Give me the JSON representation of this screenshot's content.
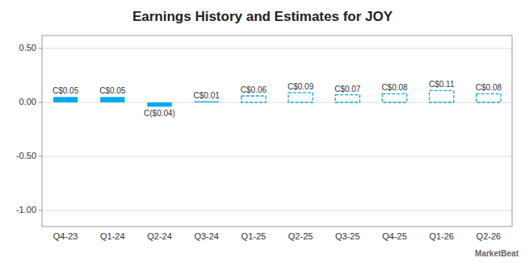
{
  "chart_data": {
    "type": "bar",
    "title": "Earnings History and Estimates for JOY",
    "categories": [
      "Q4-23",
      "Q1-24",
      "Q2-24",
      "Q3-24",
      "Q1-25",
      "Q2-25",
      "Q3-25",
      "Q4-25",
      "Q1-26",
      "Q2-26"
    ],
    "series": [
      {
        "values": [
          0.05,
          0.05,
          -0.04,
          0.01,
          null,
          null,
          null,
          null,
          null,
          null
        ],
        "value_labels": [
          "C$0.05",
          "C$0.05",
          "C($0.04)",
          "C$0.01",
          null,
          null,
          null,
          null,
          null,
          null
        ],
        "line_style": "solid"
      },
      {
        "values": [
          null,
          null,
          null,
          null,
          0.06,
          0.09,
          0.07,
          0.08,
          0.11,
          0.08
        ],
        "value_labels": [
          null,
          null,
          null,
          null,
          "C$0.06",
          "C$0.09",
          "C$0.07",
          "C$0.08",
          "C$0.11",
          "C$0.08"
        ],
        "line_style": "dashed"
      }
    ],
    "color": "#00aaee",
    "data_labels": true,
    "ylim": [
      -1.15,
      0.62
    ],
    "yticks": [
      {
        "value": -1.0,
        "label": "-1.00"
      },
      {
        "value": -0.5,
        "label": "-0.50"
      },
      {
        "value": 0.0,
        "label": "0.00"
      },
      {
        "value": 0.5,
        "label": "0.50"
      }
    ],
    "grid": true,
    "annotations": [
      "MarketBeat"
    ]
  }
}
